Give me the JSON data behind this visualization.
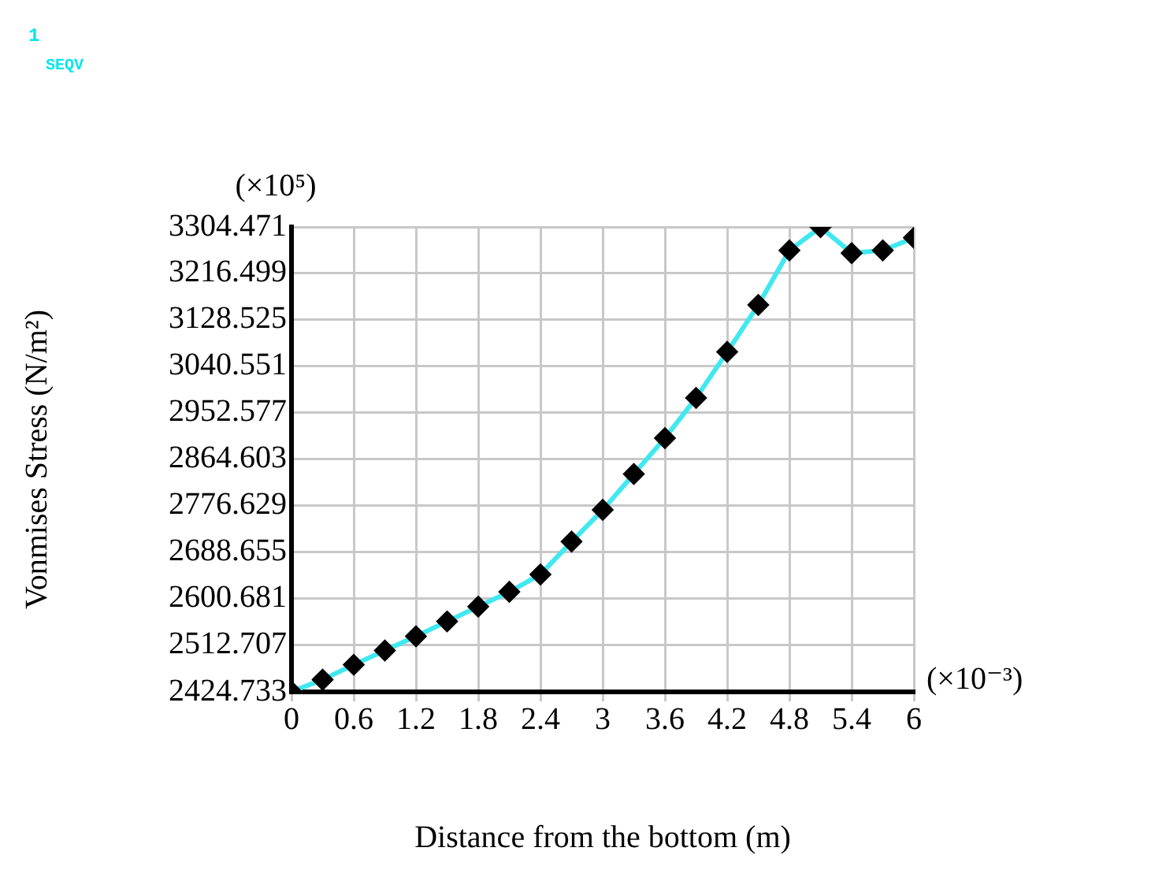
{
  "chart_data": {
    "type": "line",
    "xlabel": "Distance from the bottom (m)",
    "ylabel": "Vonmises Stress (N/m²)",
    "annotations": [
      "1",
      "SEQV",
      "(×10⁵)",
      "(×10⁻³)"
    ],
    "x": [
      0,
      0.3,
      0.6,
      0.9,
      1.2,
      1.5,
      1.8,
      2.1,
      2.4,
      2.7,
      3.0,
      3.3,
      3.6,
      3.9,
      4.2,
      4.5,
      4.8,
      5.1,
      5.4,
      5.7,
      6.0
    ],
    "series": [
      {
        "color": "#40e8f0",
        "values": [
          2425,
          2448,
          2476,
          2503,
          2530,
          2558,
          2586,
          2614,
          2647,
          2709,
          2769,
          2837,
          2905,
          2981,
          3068,
          3157,
          3260,
          3304,
          3255,
          3260,
          3284
        ]
      }
    ],
    "xlim": [
      0,
      6
    ],
    "xticks": [
      0,
      0.6,
      1.2,
      1.8,
      2.4,
      3,
      3.6,
      4.2,
      4.8,
      5.4,
      6
    ],
    "ylim": [
      2424.733,
      3304.471
    ],
    "yticks": [
      2424.733,
      2512.707,
      2600.681,
      2688.655,
      2776.629,
      2864.603,
      2952.577,
      3040.551,
      3128.525,
      3216.499,
      3304.471
    ],
    "grid": true,
    "marker": "diamond",
    "line_style": "solid",
    "legend": false
  }
}
